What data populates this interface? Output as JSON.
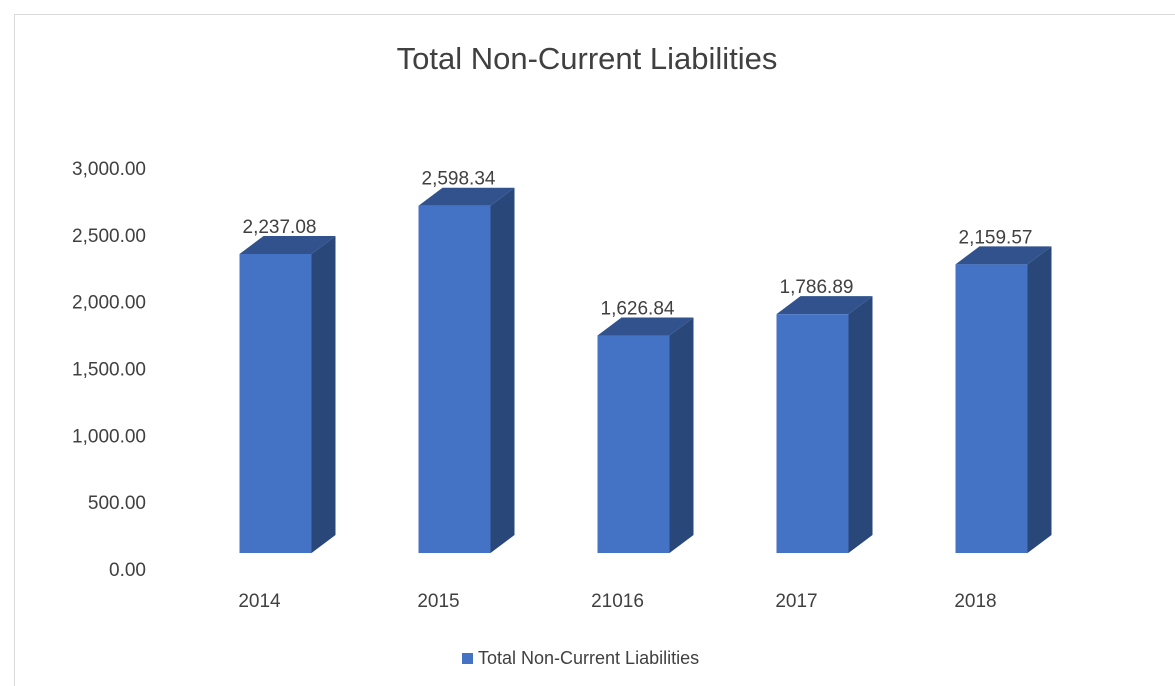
{
  "chart_data": {
    "type": "bar3d",
    "title": "Total Non-Current Liabilities",
    "categories": [
      "2014",
      "2015",
      "21016",
      "2017",
      "2018"
    ],
    "series": [
      {
        "name": "Total Non-Current Liabilities",
        "color": "#4472c4",
        "values": [
          2237.08,
          2598.34,
          1626.84,
          1786.89,
          2159.57
        ],
        "value_labels": [
          "2,237.08",
          "2,598.34",
          "1,626.84",
          "1,786.89",
          "2,159.57"
        ]
      }
    ],
    "ylim": [
      0,
      3000
    ],
    "yticks": [
      {
        "value": 0,
        "label": "0.00"
      },
      {
        "value": 500,
        "label": "500.00"
      },
      {
        "value": 1000,
        "label": "1,000.00"
      },
      {
        "value": 1500,
        "label": "1,500.00"
      },
      {
        "value": 2000,
        "label": "2,000.00"
      },
      {
        "value": 2500,
        "label": "2,500.00"
      },
      {
        "value": 3000,
        "label": "3,000.00"
      }
    ],
    "grid": false,
    "legend": "bottom"
  }
}
